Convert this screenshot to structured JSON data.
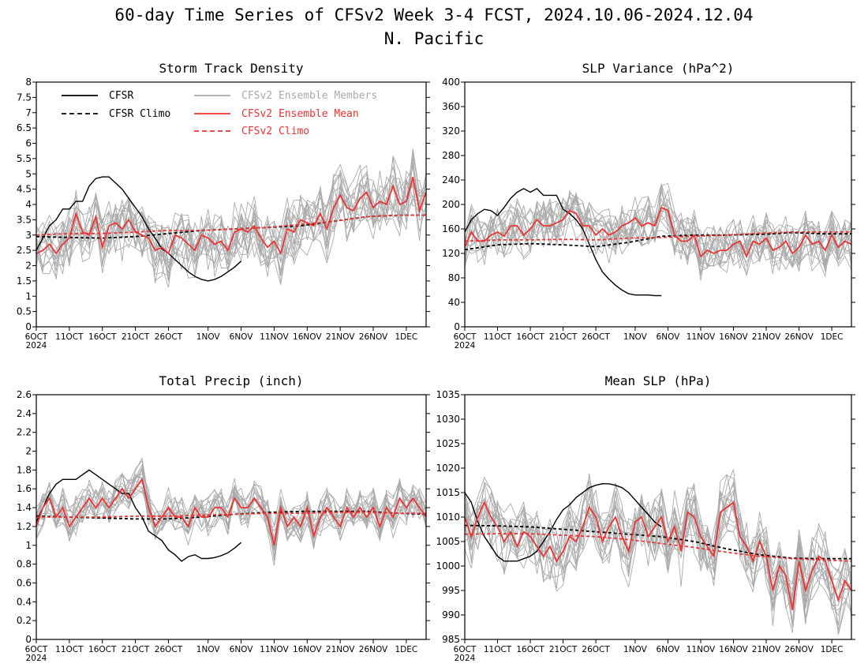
{
  "figure": {
    "title_line1": "60-day Time Series of CFSv2 Week 3-4 FCST, 2024.10.06-2024.12.04",
    "title_line2": "N. Pacific",
    "legend": [
      {
        "label": "CFSR",
        "color": "#000000",
        "dash": false
      },
      {
        "label": "CFSR Climo",
        "color": "#000000",
        "dash": true
      },
      {
        "label": "CFSv2 Ensemble Members",
        "color": "#aaaaaa",
        "dash": false
      },
      {
        "label": "CFSv2 Ensemble Mean",
        "color": "#ee3333",
        "dash": false
      },
      {
        "label": "CFSv2 Climo",
        "color": "#ee3333",
        "dash": true
      }
    ],
    "colors": {
      "cfsr": "#000000",
      "members": "#aaaaaa",
      "mean": "#ee3333",
      "climo_red": "#ee3333"
    }
  },
  "chart_data": [
    {
      "type": "line",
      "title": "Storm Track Density",
      "ylim": [
        0,
        8
      ],
      "yticks": [
        0,
        0.5,
        1,
        1.5,
        2,
        2.5,
        3,
        3.5,
        4,
        4.5,
        5,
        5.5,
        6,
        6.5,
        7,
        7.5,
        8
      ],
      "xticks": [
        {
          "day": 0,
          "label": "6OCT",
          "sub": "2024"
        },
        {
          "day": 5,
          "label": "11OCT"
        },
        {
          "day": 10,
          "label": "16OCT"
        },
        {
          "day": 15,
          "label": "21OCT"
        },
        {
          "day": 20,
          "label": "26OCT"
        },
        {
          "day": 26,
          "label": "1NOV"
        },
        {
          "day": 31,
          "label": "6NOV"
        },
        {
          "day": 36,
          "label": "11NOV"
        },
        {
          "day": 41,
          "label": "16NOV"
        },
        {
          "day": 46,
          "label": "21NOV"
        },
        {
          "day": 51,
          "label": "26NOV"
        },
        {
          "day": 56,
          "label": "1DEC"
        }
      ],
      "xlim": [
        0,
        59
      ],
      "series": [
        {
          "name": "CFSR",
          "x": [
            0,
            1,
            2,
            3,
            4,
            5,
            6,
            7,
            8,
            9,
            10,
            11,
            12,
            13,
            14,
            15,
            16,
            17,
            18,
            19,
            20,
            21,
            22,
            23,
            24,
            25,
            26,
            27,
            28,
            29,
            30,
            31
          ],
          "values": [
            2.5,
            2.9,
            3.3,
            3.5,
            3.85,
            3.85,
            4.1,
            4.1,
            4.6,
            4.85,
            4.9,
            4.9,
            4.7,
            4.5,
            4.2,
            3.9,
            3.6,
            3.2,
            2.9,
            2.55,
            2.4,
            2.2,
            2.0,
            1.8,
            1.65,
            1.55,
            1.5,
            1.55,
            1.65,
            1.8,
            1.95,
            2.15
          ]
        },
        {
          "name": "CFSR Climo",
          "x": [
            0,
            5,
            10,
            15,
            20,
            25,
            30,
            35,
            40,
            45,
            50,
            55,
            59
          ],
          "values": [
            2.95,
            2.92,
            2.9,
            2.95,
            3.05,
            3.15,
            3.2,
            3.25,
            3.3,
            3.45,
            3.6,
            3.65,
            3.65
          ]
        },
        {
          "name": "CFSv2 Ensemble Mean",
          "values": [
            2.4,
            2.5,
            2.7,
            2.4,
            2.7,
            2.9,
            3.7,
            3.1,
            3.0,
            3.6,
            2.6,
            3.3,
            3.4,
            3.2,
            3.5,
            3.1,
            3.0,
            2.9,
            2.5,
            2.6,
            2.4,
            3.0,
            2.9,
            2.7,
            2.5,
            3.0,
            2.9,
            2.7,
            2.8,
            2.5,
            3.1,
            3.2,
            3.1,
            3.3,
            2.9,
            2.6,
            2.8,
            2.4,
            3.2,
            3.1,
            3.5,
            3.4,
            3.3,
            3.7,
            3.2,
            3.9,
            4.3,
            3.9,
            3.8,
            4.2,
            4.4,
            3.9,
            4.1,
            4.0,
            4.6,
            4.0,
            4.1,
            4.9,
            3.8,
            4.4
          ]
        },
        {
          "name": "CFSv2 Climo",
          "x": [
            0,
            5,
            10,
            15,
            20,
            25,
            30,
            35,
            40,
            45,
            50,
            55,
            59
          ],
          "values": [
            3.0,
            3.05,
            3.05,
            3.1,
            3.15,
            3.15,
            3.2,
            3.25,
            3.35,
            3.45,
            3.6,
            3.65,
            3.65
          ]
        }
      ],
      "members": {
        "count": 16,
        "spread": 0.9
      }
    },
    {
      "type": "line",
      "title": "SLP Variance (hPa^2)",
      "ylim": [
        0,
        400
      ],
      "yticks": [
        0,
        40,
        80,
        120,
        160,
        200,
        240,
        280,
        320,
        360,
        400
      ],
      "xlim": [
        0,
        59
      ],
      "series": [
        {
          "name": "CFSR",
          "x": [
            0,
            1,
            2,
            3,
            4,
            5,
            6,
            7,
            8,
            9,
            10,
            11,
            12,
            13,
            14,
            15,
            16,
            17,
            18,
            19,
            20,
            21,
            22,
            23,
            24,
            25,
            26,
            27,
            28,
            29,
            30
          ],
          "values": [
            155,
            175,
            185,
            192,
            190,
            182,
            195,
            210,
            220,
            226,
            220,
            226,
            215,
            215,
            215,
            192,
            185,
            175,
            160,
            135,
            110,
            90,
            78,
            68,
            60,
            54,
            52,
            52,
            52,
            51,
            51
          ]
        },
        {
          "name": "CFSR Climo",
          "x": [
            0,
            5,
            10,
            15,
            20,
            25,
            30,
            35,
            40,
            45,
            50,
            55,
            59
          ],
          "values": [
            126,
            134,
            136,
            134,
            131,
            138,
            148,
            150,
            150,
            151,
            154,
            152,
            152
          ]
        },
        {
          "name": "CFSv2 Ensemble Mean",
          "values": [
            130,
            155,
            140,
            140,
            150,
            155,
            148,
            165,
            165,
            150,
            160,
            175,
            165,
            165,
            170,
            175,
            190,
            185,
            165,
            165,
            150,
            160,
            150,
            155,
            165,
            170,
            178,
            165,
            170,
            165,
            195,
            190,
            150,
            140,
            140,
            150,
            115,
            125,
            120,
            125,
            125,
            135,
            140,
            115,
            140,
            135,
            145,
            125,
            130,
            140,
            120,
            130,
            150,
            135,
            140,
            125,
            150,
            130,
            140,
            135
          ]
        },
        {
          "name": "CFSv2 Climo",
          "x": [
            0,
            5,
            10,
            15,
            20,
            25,
            30,
            35,
            40,
            45,
            50,
            55,
            59
          ],
          "values": [
            140,
            142,
            142,
            143,
            142,
            145,
            146,
            148,
            150,
            153,
            155,
            155,
            155
          ]
        }
      ],
      "members": {
        "count": 16,
        "spread": 38
      }
    },
    {
      "type": "line",
      "title": "Total Precip (inch)",
      "ylim": [
        0,
        2.6
      ],
      "yticks": [
        0,
        0.2,
        0.4,
        0.6,
        0.8,
        1,
        1.2,
        1.4,
        1.6,
        1.8,
        2,
        2.2,
        2.4,
        2.6
      ],
      "xlim": [
        0,
        59
      ],
      "series": [
        {
          "name": "CFSR",
          "x": [
            0,
            1,
            2,
            3,
            4,
            5,
            6,
            7,
            8,
            9,
            10,
            11,
            12,
            13,
            14,
            15,
            16,
            17,
            18,
            19,
            20,
            21,
            22,
            23,
            24,
            25,
            26,
            27,
            28,
            29,
            30,
            31
          ],
          "values": [
            1.25,
            1.4,
            1.55,
            1.65,
            1.7,
            1.7,
            1.7,
            1.75,
            1.8,
            1.75,
            1.7,
            1.65,
            1.6,
            1.55,
            1.55,
            1.4,
            1.3,
            1.15,
            1.1,
            1.05,
            0.95,
            0.9,
            0.83,
            0.88,
            0.9,
            0.86,
            0.86,
            0.87,
            0.89,
            0.92,
            0.97,
            1.03
          ]
        },
        {
          "name": "CFSR Climo",
          "x": [
            0,
            5,
            10,
            15,
            20,
            25,
            30,
            35,
            40,
            45,
            50,
            55,
            59
          ],
          "values": [
            1.31,
            1.3,
            1.29,
            1.28,
            1.28,
            1.3,
            1.33,
            1.35,
            1.36,
            1.36,
            1.36,
            1.34,
            1.33
          ]
        },
        {
          "name": "CFSv2 Ensemble Mean",
          "values": [
            1.2,
            1.4,
            1.5,
            1.3,
            1.4,
            1.2,
            1.3,
            1.4,
            1.5,
            1.4,
            1.5,
            1.4,
            1.5,
            1.6,
            1.5,
            1.6,
            1.7,
            1.4,
            1.2,
            1.3,
            1.4,
            1.3,
            1.3,
            1.2,
            1.4,
            1.3,
            1.3,
            1.4,
            1.4,
            1.3,
            1.5,
            1.4,
            1.4,
            1.5,
            1.4,
            1.3,
            1.0,
            1.4,
            1.2,
            1.3,
            1.2,
            1.4,
            1.1,
            1.3,
            1.4,
            1.3,
            1.2,
            1.4,
            1.3,
            1.4,
            1.3,
            1.4,
            1.2,
            1.4,
            1.3,
            1.5,
            1.4,
            1.5,
            1.4,
            1.3
          ]
        },
        {
          "name": "CFSv2 Climo",
          "x": [
            0,
            5,
            10,
            15,
            20,
            25,
            30,
            35,
            40,
            45,
            50,
            55,
            59
          ],
          "values": [
            1.3,
            1.3,
            1.3,
            1.31,
            1.31,
            1.32,
            1.33,
            1.34,
            1.34,
            1.35,
            1.35,
            1.34,
            1.34
          ]
        }
      ],
      "members": {
        "count": 16,
        "spread": 0.18
      }
    },
    {
      "type": "line",
      "title": "Mean SLP (hPa)",
      "ylim": [
        985,
        1035
      ],
      "yticks": [
        985,
        990,
        995,
        1000,
        1005,
        1010,
        1015,
        1020,
        1025,
        1030,
        1035
      ],
      "xlim": [
        0,
        59
      ],
      "series": [
        {
          "name": "CFSR",
          "x": [
            0,
            1,
            2,
            3,
            4,
            5,
            6,
            7,
            8,
            9,
            10,
            11,
            12,
            13,
            14,
            15,
            16,
            17,
            18,
            19,
            20,
            21,
            22,
            23,
            24,
            25,
            26,
            27,
            28,
            29,
            30
          ],
          "values": [
            1015,
            1013,
            1009,
            1006,
            1004,
            1002,
            1001,
            1001,
            1001,
            1001.5,
            1002,
            1003,
            1005,
            1007,
            1009.5,
            1011.5,
            1012.5,
            1014,
            1015,
            1016,
            1016.5,
            1016.8,
            1016.8,
            1016.5,
            1016,
            1015,
            1013.5,
            1012,
            1010.5,
            1009,
            1008
          ]
        },
        {
          "name": "CFSR Climo",
          "x": [
            0,
            5,
            10,
            15,
            20,
            25,
            30,
            35,
            40,
            45,
            50,
            55,
            59
          ],
          "values": [
            1008.3,
            1008.2,
            1008,
            1007.5,
            1007,
            1006.5,
            1006,
            1005,
            1003.5,
            1002.3,
            1001.6,
            1001.5,
            1001.5
          ]
        },
        {
          "name": "CFSv2 Ensemble Mean",
          "values": [
            1010,
            1006,
            1010,
            1013,
            1010,
            1008,
            1005,
            1007,
            1004,
            1007,
            1006,
            1004,
            1002,
            1004,
            1001,
            1003,
            1006,
            1005,
            1008,
            1012,
            1010,
            1005,
            1008,
            1010,
            1006,
            1003,
            1009,
            1010,
            1006,
            1008,
            1010,
            1005,
            1008,
            1003,
            1011,
            1010,
            1006,
            1004,
            1002,
            1011,
            1012,
            1013,
            1006,
            1004,
            1001,
            1005,
            1002,
            995,
            1000,
            998,
            991,
            1001,
            995,
            999,
            1002,
            1001,
            997,
            993,
            997,
            995
          ]
        },
        {
          "name": "CFSv2 Climo",
          "x": [
            0,
            5,
            10,
            15,
            20,
            25,
            30,
            35,
            40,
            45,
            50,
            55,
            59
          ],
          "values": [
            1006.5,
            1006.6,
            1006.6,
            1006.3,
            1006,
            1005.4,
            1004.6,
            1003.8,
            1002.8,
            1002,
            1001.5,
            1001.2,
            1001
          ]
        }
      ],
      "members": {
        "count": 16,
        "spread": 6
      }
    }
  ]
}
